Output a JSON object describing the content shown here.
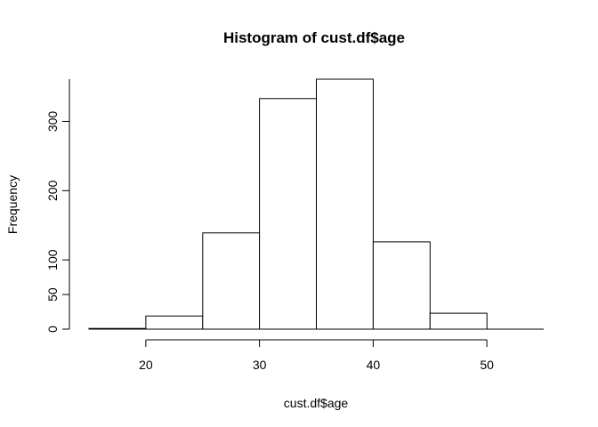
{
  "chart_data": {
    "type": "bar",
    "title": "Histogram of cust.df$age",
    "xlabel": "cust.df$age",
    "ylabel": "Frequency",
    "bins": [
      {
        "x0": 15,
        "x1": 20,
        "value": 1
      },
      {
        "x0": 20,
        "x1": 25,
        "value": 19
      },
      {
        "x0": 25,
        "x1": 30,
        "value": 139
      },
      {
        "x0": 30,
        "x1": 35,
        "value": 333
      },
      {
        "x0": 35,
        "x1": 40,
        "value": 361
      },
      {
        "x0": 40,
        "x1": 45,
        "value": 126
      },
      {
        "x0": 45,
        "x1": 50,
        "value": 23
      },
      {
        "x0": 50,
        "x1": 55,
        "value": 0
      }
    ],
    "x_ticks": [
      20,
      30,
      40,
      50
    ],
    "x_tick_labels": [
      "20",
      "30",
      "40",
      "50"
    ],
    "y_ticks": [
      0,
      50,
      100,
      200,
      300
    ],
    "y_tick_labels": [
      "0",
      "50",
      "100",
      "200",
      "300"
    ],
    "xlim": [
      15,
      55
    ],
    "ylim": [
      0,
      361
    ],
    "grid": false,
    "bar_fill": "#ffffff",
    "bar_stroke": "#000000"
  }
}
